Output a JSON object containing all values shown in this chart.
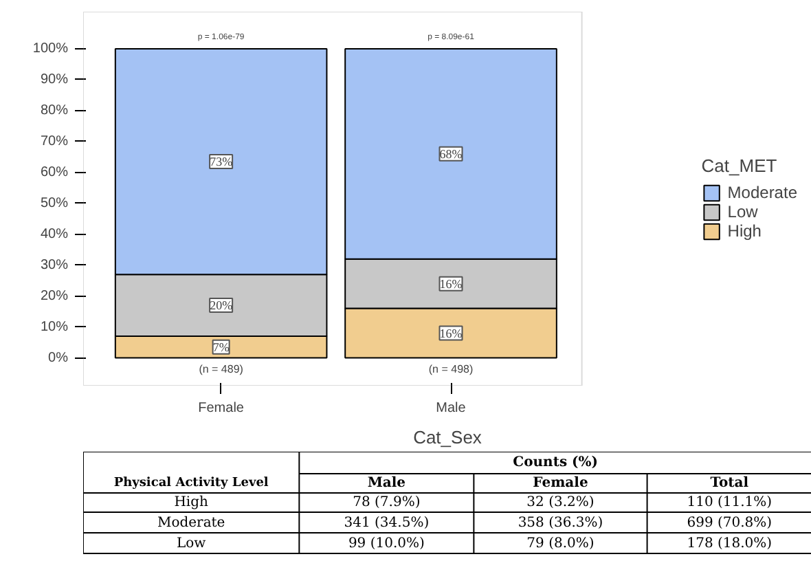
{
  "chart_data": {
    "type": "bar",
    "stacked": true,
    "xlabel": "Cat_Sex",
    "legend_title": "Cat_MET",
    "legend": "right",
    "grid": false,
    "categories": [
      "Female",
      "Male"
    ],
    "series": [
      {
        "name": "High",
        "color": "#f1cd8f",
        "values": [
          7,
          16
        ],
        "value_labels": [
          "7%",
          "16%"
        ]
      },
      {
        "name": "Low",
        "color": "#c8c8c8",
        "values": [
          20,
          16
        ],
        "value_labels": [
          "20%",
          "16%"
        ]
      },
      {
        "name": "Moderate",
        "color": "#a4c2f4",
        "values": [
          73,
          68
        ],
        "value_labels": [
          "73%",
          "68%"
        ]
      }
    ],
    "ylim": [
      -9,
      112
    ],
    "yticks": [
      {
        "value": 0,
        "label": "0%"
      },
      {
        "value": 10,
        "label": "10%"
      },
      {
        "value": 20,
        "label": "20%"
      },
      {
        "value": 30,
        "label": "30%"
      },
      {
        "value": 40,
        "label": "40%"
      },
      {
        "value": 50,
        "label": "50%"
      },
      {
        "value": 60,
        "label": "60%"
      },
      {
        "value": 70,
        "label": "70%"
      },
      {
        "value": 80,
        "label": "80%"
      },
      {
        "value": 90,
        "label": "90%"
      },
      {
        "value": 100,
        "label": "100%"
      }
    ],
    "annotations": [
      "p = 1.06e-79",
      "p = 8.09e-61",
      "(n = 489)",
      "(n = 498)",
      "Physical Activity Level",
      "Counts (%)",
      "Male",
      "Female",
      "Total",
      "High",
      "78 (7.9%)",
      "32 (3.2%)",
      "110 (11.1%)",
      "Moderate",
      "341 (34.5%)",
      "358 (36.3%)",
      "699 (70.8%)",
      "Low",
      "99 (10.0%)",
      "79 (8.0%)",
      "178 (18.0%)"
    ]
  }
}
